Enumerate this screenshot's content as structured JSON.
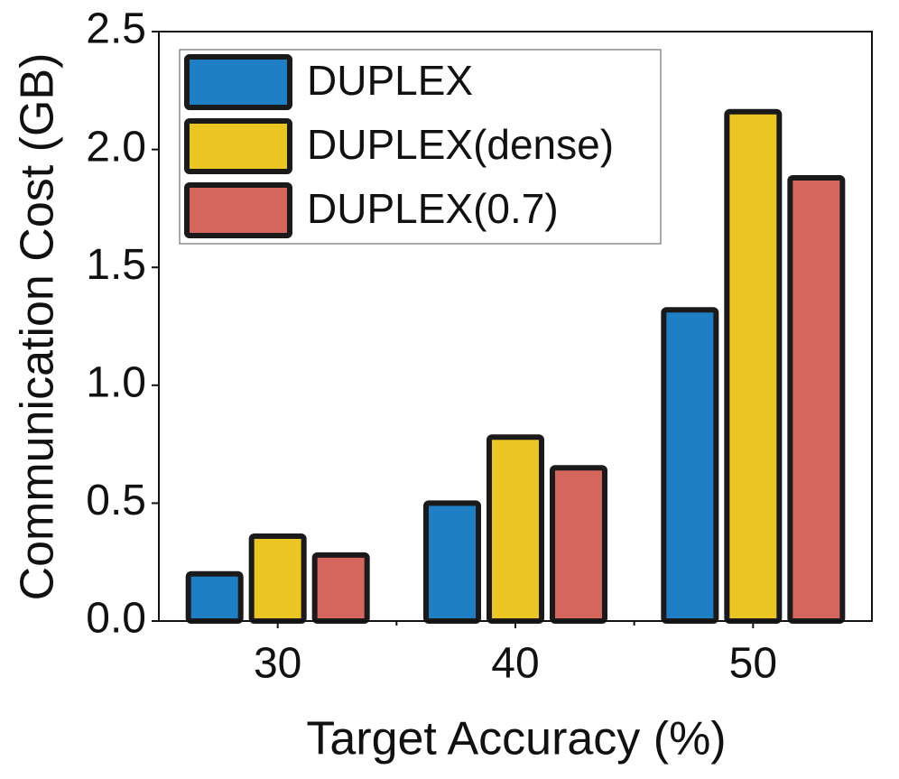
{
  "chart_data": {
    "type": "bar",
    "categories": [
      "30",
      "40",
      "50"
    ],
    "series": [
      {
        "name": "DUPLEX",
        "color": "#1f7fc4",
        "values": [
          0.2,
          0.5,
          1.32
        ]
      },
      {
        "name": "DUPLEX(dense)",
        "color": "#ebc522",
        "values": [
          0.36,
          0.78,
          2.16
        ]
      },
      {
        "name": "DUPLEX(0.7)",
        "color": "#d4665e",
        "values": [
          0.28,
          0.65,
          1.88
        ]
      }
    ],
    "x_label": "Target Accuracy (%)",
    "y_label": "Communication Cost (GB)",
    "ylim": [
      0,
      2.5
    ],
    "yticks": [
      {
        "value": 0,
        "label": "0.0"
      },
      0.5,
      {
        "value": 1,
        "label": "1.0"
      },
      1.5,
      {
        "value": 2,
        "label": "2.0"
      },
      2.5
    ],
    "legend": "upper left",
    "grid": false
  }
}
